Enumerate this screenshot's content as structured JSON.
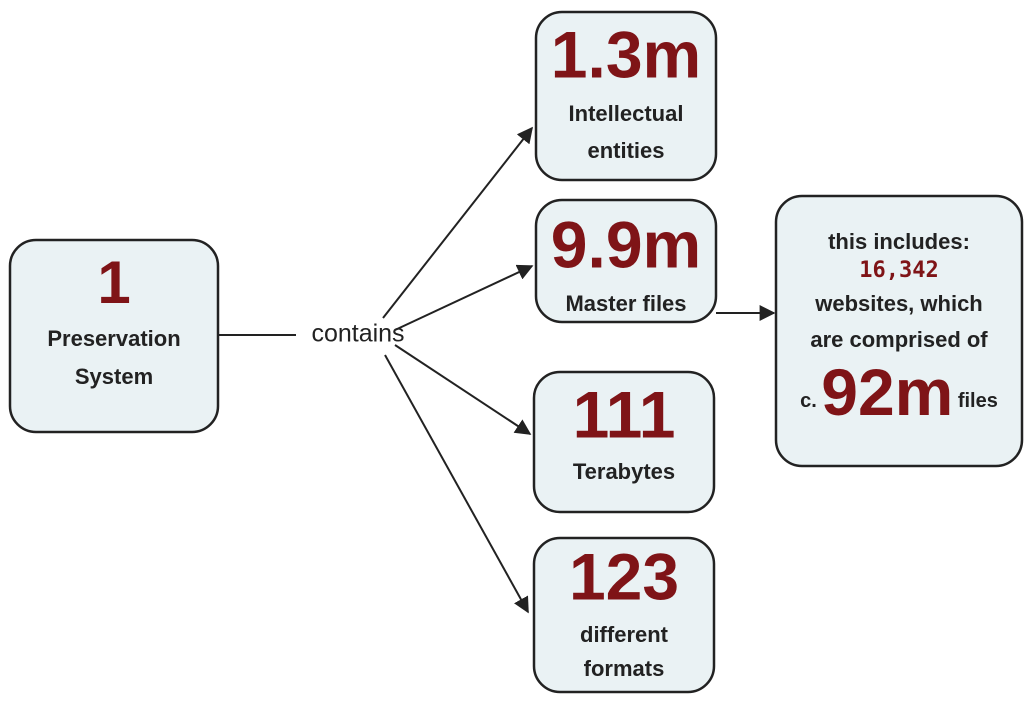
{
  "source": {
    "number": "1",
    "label": [
      "Preservation",
      "System"
    ]
  },
  "connector": "contains",
  "nodes": [
    {
      "number": "1.3m",
      "label": [
        "Intellectual",
        "entities"
      ]
    },
    {
      "number": "9.9m",
      "label": [
        "Master files"
      ]
    },
    {
      "number": "111",
      "label": [
        "Terabytes"
      ]
    },
    {
      "number": "123",
      "label": [
        "different",
        "formats"
      ]
    }
  ],
  "detail": {
    "intro": "this includes:",
    "count": "16,342",
    "lines": [
      "websites, which",
      "are comprised of"
    ],
    "prefix": "c.",
    "total": "92m",
    "suffix": "files"
  }
}
